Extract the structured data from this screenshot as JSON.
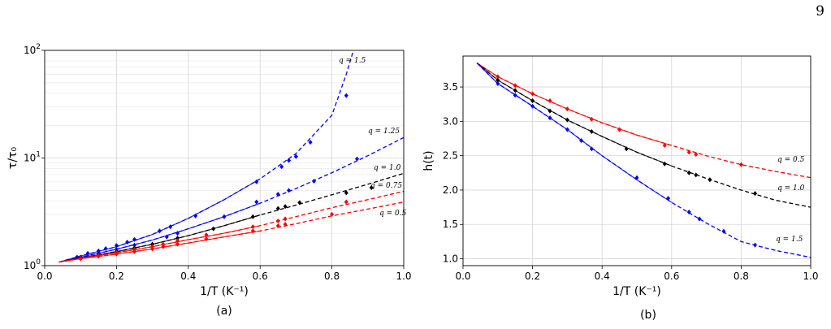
{
  "page_number": "9",
  "colors": {
    "q1.5": "#0000ff",
    "q1.25": "#0000ff",
    "q1.0": "#000000",
    "q0.75": "#ff0000",
    "q0.5": "#ff0000"
  },
  "chart_data": [
    {
      "type": "line",
      "caption": "(a)",
      "xlabel": "1/T (K⁻¹)",
      "ylabel": "τ/τ₀",
      "xlim": [
        0.0,
        1.0
      ],
      "ylim": [
        1,
        100
      ],
      "yscale": "log",
      "grid": true,
      "xticks": [
        "0.0",
        "0.2",
        "0.4",
        "0.6",
        "0.8",
        "1.0"
      ],
      "yticks": [
        {
          "base": "10",
          "exp": "0",
          "value": 1
        },
        {
          "base": "10",
          "exp": "1",
          "value": 10
        },
        {
          "base": "10",
          "exp": "2",
          "value": 100
        }
      ],
      "series": [
        {
          "key": "q1.5",
          "label": "q = 1.5",
          "color": "#0000ff",
          "x": [
            0.04,
            0.1,
            0.2,
            0.3,
            0.4,
            0.5,
            0.6,
            0.7,
            0.8,
            0.84,
            0.86
          ],
          "y": [
            1.08,
            1.23,
            1.5,
            1.95,
            2.75,
            4.1,
            6.4,
            11,
            25,
            60,
            100
          ],
          "px": [
            0.09,
            0.12,
            0.15,
            0.17,
            0.2,
            0.23,
            0.25,
            0.32,
            0.35,
            0.42,
            0.59,
            0.66,
            0.68,
            0.7,
            0.74,
            0.84
          ],
          "py": [
            1.2,
            1.3,
            1.37,
            1.44,
            1.54,
            1.65,
            1.75,
            2.1,
            2.3,
            2.9,
            6.0,
            8.3,
            9.5,
            10.3,
            14.0,
            38
          ]
        },
        {
          "key": "q1.25",
          "label": "q = 1.25",
          "color": "#0000ff",
          "x": [
            0.04,
            0.1,
            0.2,
            0.3,
            0.4,
            0.5,
            0.6,
            0.7,
            0.8,
            0.9,
            1.0
          ],
          "y": [
            1.08,
            1.2,
            1.42,
            1.73,
            2.2,
            2.85,
            3.8,
            5.2,
            7.3,
            10.5,
            15.5
          ],
          "px": [
            0.1,
            0.15,
            0.2,
            0.25,
            0.34,
            0.37,
            0.5,
            0.59,
            0.65,
            0.68,
            0.75,
            0.87
          ],
          "py": [
            1.2,
            1.3,
            1.42,
            1.55,
            1.85,
            2.0,
            2.85,
            3.9,
            4.6,
            5.0,
            6.1,
            9.8
          ]
        },
        {
          "key": "q1.0",
          "label": "q = 1.0",
          "color": "#000000",
          "x": [
            0.04,
            0.1,
            0.2,
            0.3,
            0.4,
            0.5,
            0.6,
            0.7,
            0.8,
            0.9,
            1.0
          ],
          "y": [
            1.08,
            1.18,
            1.35,
            1.58,
            1.9,
            2.35,
            2.95,
            3.65,
            4.55,
            5.7,
            7.2
          ],
          "px": [
            0.1,
            0.15,
            0.2,
            0.25,
            0.3,
            0.37,
            0.47,
            0.58,
            0.65,
            0.67,
            0.71,
            0.84,
            0.91
          ],
          "py": [
            1.18,
            1.26,
            1.35,
            1.46,
            1.58,
            1.8,
            2.2,
            2.85,
            3.4,
            3.55,
            3.85,
            4.75,
            5.3
          ]
        },
        {
          "key": "q0.75",
          "label": "q = 0.75",
          "color": "#ff0000",
          "x": [
            0.04,
            0.1,
            0.2,
            0.3,
            0.4,
            0.5,
            0.6,
            0.7,
            0.8,
            0.9,
            1.0
          ],
          "y": [
            1.08,
            1.17,
            1.32,
            1.5,
            1.74,
            2.0,
            2.35,
            2.85,
            3.45,
            4.1,
            4.9
          ],
          "px": [
            0.1,
            0.15,
            0.2,
            0.25,
            0.3,
            0.33,
            0.37,
            0.45,
            0.58,
            0.65,
            0.67,
            0.84
          ],
          "py": [
            1.17,
            1.24,
            1.32,
            1.41,
            1.5,
            1.58,
            1.7,
            1.93,
            2.3,
            2.6,
            2.72,
            3.9
          ]
        },
        {
          "key": "q0.5",
          "label": "q = 0.5",
          "color": "#ff0000",
          "x": [
            0.04,
            0.1,
            0.2,
            0.3,
            0.4,
            0.5,
            0.6,
            0.7,
            0.8,
            0.9,
            1.0
          ],
          "y": [
            1.08,
            1.16,
            1.28,
            1.43,
            1.62,
            1.85,
            2.1,
            2.45,
            2.9,
            3.35,
            3.9
          ],
          "px": [
            0.1,
            0.15,
            0.2,
            0.25,
            0.3,
            0.33,
            0.37,
            0.45,
            0.58,
            0.65,
            0.67,
            0.8
          ],
          "py": [
            1.16,
            1.22,
            1.28,
            1.35,
            1.43,
            1.5,
            1.58,
            1.77,
            2.1,
            2.35,
            2.42,
            3.0
          ]
        }
      ]
    },
    {
      "type": "line",
      "caption": "(b)",
      "xlabel": "1/T (K⁻¹)",
      "ylabel": "h(t)",
      "xlim": [
        0.0,
        1.0
      ],
      "ylim": [
        0.9,
        3.95
      ],
      "yscale": "linear",
      "grid": true,
      "xticks": [
        "0.0",
        "0.2",
        "0.4",
        "0.6",
        "0.8",
        "1.0"
      ],
      "yticks": [
        {
          "label": "1.0",
          "value": 1.0
        },
        {
          "label": "1.5",
          "value": 1.5
        },
        {
          "label": "2.0",
          "value": 2.0
        },
        {
          "label": "2.5",
          "value": 2.5
        },
        {
          "label": "3.0",
          "value": 3.0
        },
        {
          "label": "3.5",
          "value": 3.5
        }
      ],
      "series": [
        {
          "key": "q0.5",
          "label": "q = 0.5",
          "color": "#ff0000",
          "x": [
            0.04,
            0.1,
            0.2,
            0.3,
            0.4,
            0.5,
            0.6,
            0.7,
            0.8,
            0.9,
            1.0
          ],
          "y": [
            3.85,
            3.65,
            3.4,
            3.18,
            2.98,
            2.8,
            2.65,
            2.5,
            2.37,
            2.27,
            2.18
          ],
          "px": [
            0.1,
            0.15,
            0.2,
            0.25,
            0.3,
            0.37,
            0.45,
            0.58,
            0.65,
            0.67,
            0.8
          ],
          "py": [
            3.65,
            3.52,
            3.4,
            3.3,
            3.18,
            3.03,
            2.88,
            2.65,
            2.55,
            2.52,
            2.37
          ]
        },
        {
          "key": "q1.0",
          "label": "q = 1.0",
          "color": "#000000",
          "x": [
            0.04,
            0.1,
            0.2,
            0.3,
            0.4,
            0.5,
            0.6,
            0.7,
            0.8,
            0.9,
            1.0
          ],
          "y": [
            3.85,
            3.6,
            3.3,
            3.02,
            2.78,
            2.55,
            2.35,
            2.17,
            2.0,
            1.85,
            1.75
          ],
          "px": [
            0.1,
            0.15,
            0.2,
            0.25,
            0.3,
            0.37,
            0.47,
            0.58,
            0.65,
            0.67,
            0.71,
            0.84
          ],
          "py": [
            3.6,
            3.45,
            3.3,
            3.15,
            3.02,
            2.85,
            2.6,
            2.38,
            2.25,
            2.22,
            2.15,
            1.95
          ]
        },
        {
          "key": "q1.5",
          "label": "q = 1.5",
          "color": "#0000ff",
          "x": [
            0.04,
            0.1,
            0.2,
            0.3,
            0.4,
            0.5,
            0.6,
            0.7,
            0.8,
            0.9,
            1.0
          ],
          "y": [
            3.85,
            3.55,
            3.22,
            2.88,
            2.5,
            2.15,
            1.82,
            1.52,
            1.25,
            1.12,
            1.02
          ],
          "px": [
            0.1,
            0.15,
            0.2,
            0.25,
            0.3,
            0.34,
            0.37,
            0.5,
            0.59,
            0.65,
            0.68,
            0.75,
            0.84
          ],
          "py": [
            3.55,
            3.38,
            3.22,
            3.05,
            2.88,
            2.72,
            2.6,
            2.18,
            1.88,
            1.68,
            1.58,
            1.4,
            1.2
          ]
        }
      ]
    }
  ]
}
